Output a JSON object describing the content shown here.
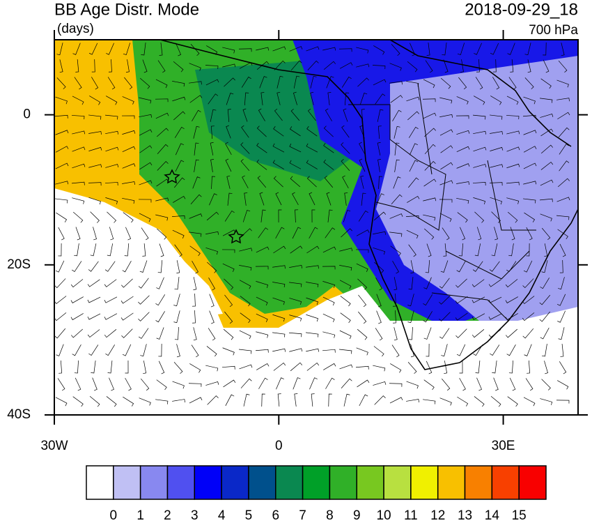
{
  "header": {
    "title": "BB Age Distr. Mode",
    "units": "(days)",
    "datetime": "2018-09-29_18",
    "level": "700 hPa"
  },
  "map": {
    "lonlim": [
      -30,
      40
    ],
    "latlim": [
      -40,
      10
    ],
    "lon_ticks": [
      {
        "value": -30,
        "label": "30W"
      },
      {
        "value": 0,
        "label": "0"
      },
      {
        "value": 30,
        "label": "30E"
      }
    ],
    "lat_ticks": [
      {
        "value": 0,
        "label": "0"
      },
      {
        "value": -20,
        "label": "20S"
      },
      {
        "value": -40,
        "label": "40S"
      }
    ]
  },
  "colorbar": {
    "labels": [
      0,
      1,
      2,
      3,
      4,
      5,
      6,
      7,
      8,
      9,
      10,
      11,
      12,
      13,
      14,
      15
    ],
    "colors": [
      "#ffffff",
      "#c0c0f4",
      "#8888f0",
      "#5050f0",
      "#0000f8",
      "#0a28c8",
      "#00508c",
      "#0a8850",
      "#00a028",
      "#30b028",
      "#78c820",
      "#b8e040",
      "#f0f000",
      "#f8c000",
      "#f88000",
      "#f84000",
      "#f80000"
    ]
  }
}
